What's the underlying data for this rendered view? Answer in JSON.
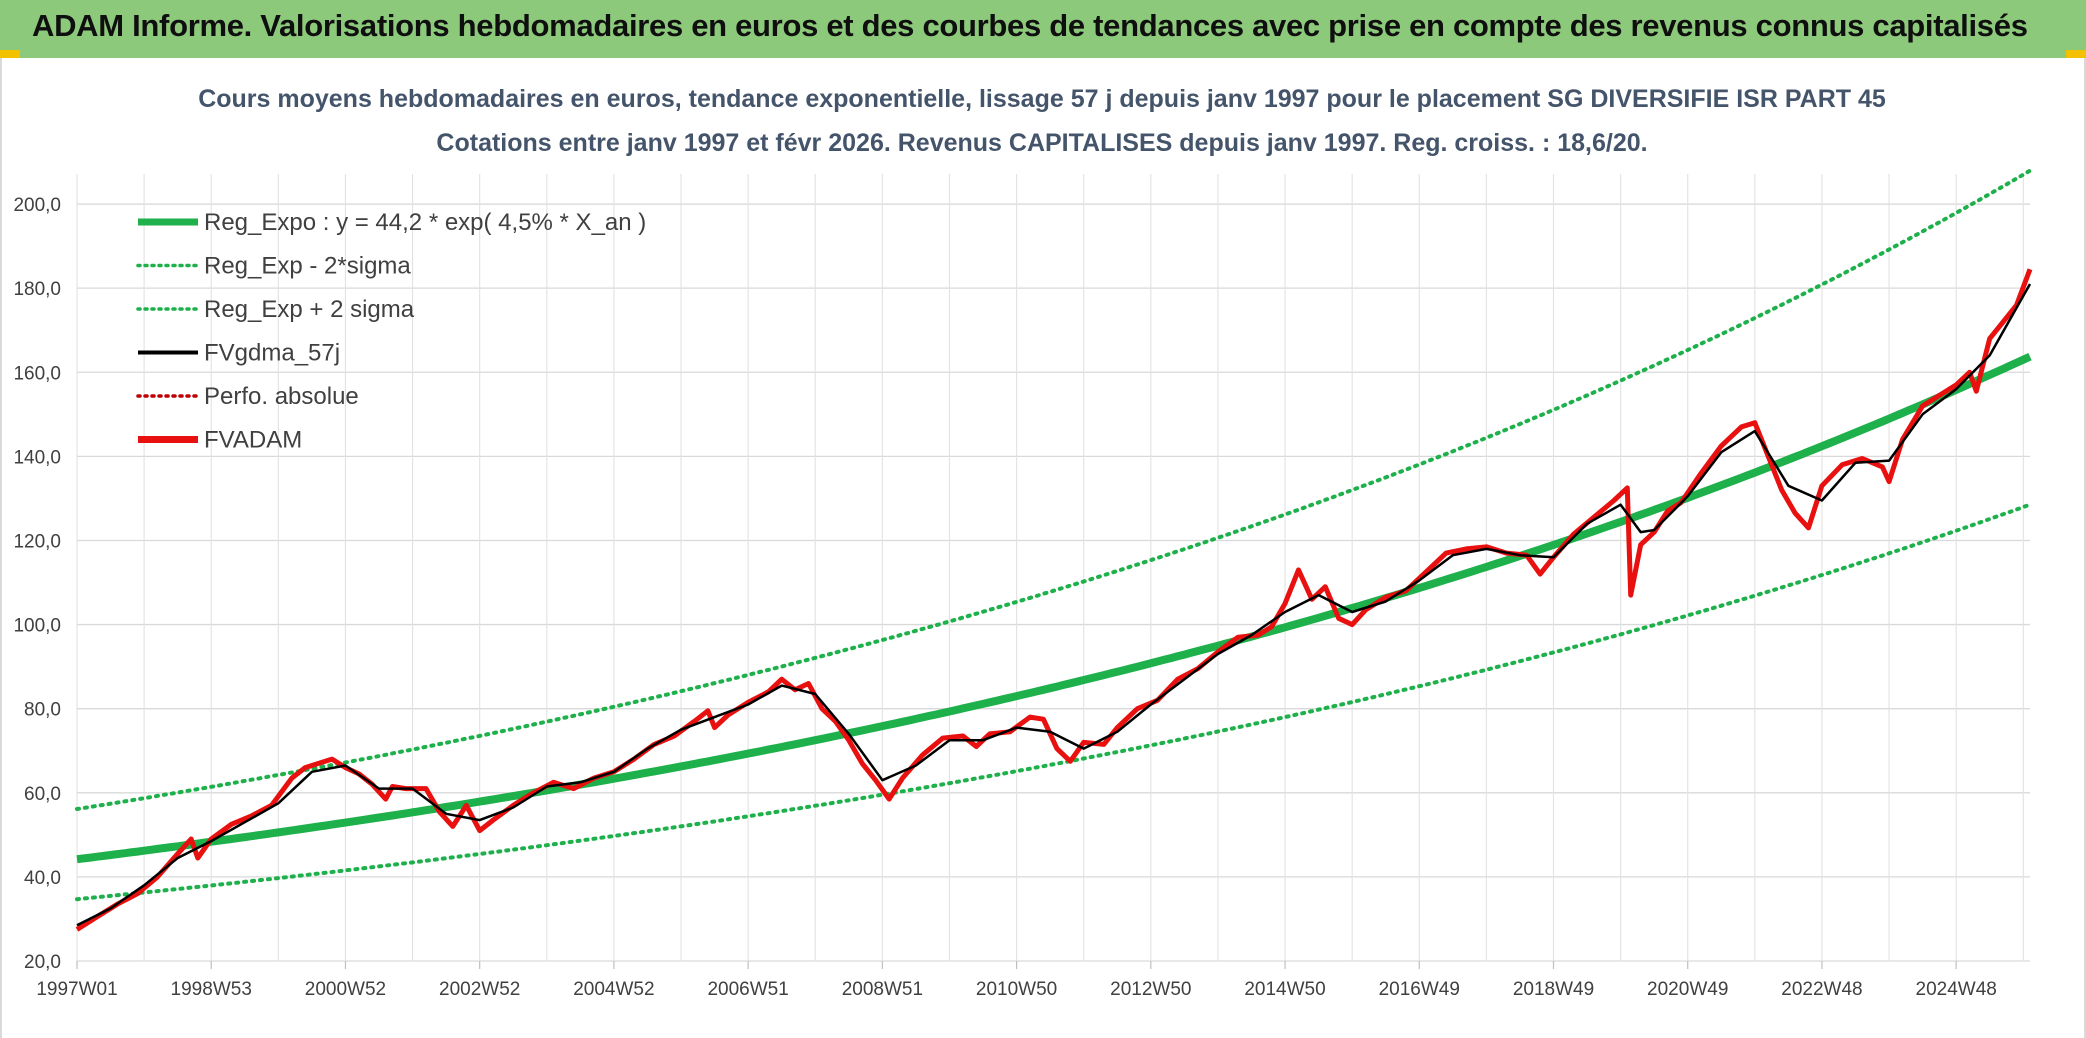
{
  "header": {
    "title": "ADAM Informe. Valorisations hebdomadaires en euros et des courbes de tendances avec prise en compte des revenus connus capitalisés",
    "background": "#8cc97a"
  },
  "chart_data": {
    "type": "line",
    "title": "Cours moyens hebdomadaires en euros, tendance exponentielle, lissage 57 j depuis janv 1997 pour le placement SG DIVERSIFIE ISR PART 45",
    "subtitle": "Cotations entre janv 1997 et févr 2026. Revenus CAPITALISES depuis janv 1997. Reg. croiss. : 18,6/20.",
    "ylim": [
      20,
      210
    ],
    "y_ticks": [
      "20,0",
      "40,0",
      "60,0",
      "80,0",
      "100,0",
      "120,0",
      "140,0",
      "160,0",
      "180,0",
      "200,0"
    ],
    "x_range_years": [
      1997.0,
      2026.1
    ],
    "x_tick_labels": [
      "1997W01",
      "1998W53",
      "2000W52",
      "2002W52",
      "2004W52",
      "2006W51",
      "2008W51",
      "2010W50",
      "2012W50",
      "2014W50",
      "2016W49",
      "2018W49",
      "2020W49",
      "2022W48",
      "2024W48"
    ],
    "x_tick_years": [
      1997.0,
      1999.0,
      2001.0,
      2003.0,
      2005.0,
      2007.0,
      2009.0,
      2011.0,
      2013.0,
      2015.0,
      2017.0,
      2019.0,
      2021.0,
      2023.0,
      2025.0
    ],
    "grid": true,
    "legend_position": "top-left",
    "legend": [
      {
        "key": "reg_expo",
        "label": "Reg_Expo : y = 44,2 * exp( 4,5% *  X_an )",
        "color": "#1db04b",
        "style": "solid-thick"
      },
      {
        "key": "reg_minus",
        "label": "Reg_Exp - 2*sigma",
        "color": "#1db04b",
        "style": "dotted"
      },
      {
        "key": "reg_plus",
        "label": "Reg_Exp + 2 sigma",
        "color": "#1db04b",
        "style": "dotted"
      },
      {
        "key": "fvgdma",
        "label": "FVgdma_57j",
        "color": "#000000",
        "style": "solid"
      },
      {
        "key": "perfo",
        "label": "Perfo. absolue",
        "color": "#c00000",
        "style": "dotted"
      },
      {
        "key": "fvadam",
        "label": "FVADAM",
        "color": "#e8110f",
        "style": "solid-thick"
      }
    ],
    "regression": {
      "a": 44.2,
      "rate": 0.045,
      "minus_factor": 0.785,
      "plus_factor": 1.27
    },
    "series": [
      {
        "name": "FVADAM",
        "points": [
          [
            1997.0,
            27.5
          ],
          [
            1997.3,
            30.5
          ],
          [
            1997.6,
            33.5
          ],
          [
            1997.9,
            36.0
          ],
          [
            1998.2,
            40.0
          ],
          [
            1998.5,
            45.5
          ],
          [
            1998.7,
            49.0
          ],
          [
            1998.8,
            44.5
          ],
          [
            1999.0,
            49.0
          ],
          [
            1999.3,
            52.5
          ],
          [
            1999.6,
            54.5
          ],
          [
            1999.9,
            57.0
          ],
          [
            2000.2,
            63.5
          ],
          [
            2000.4,
            66.0
          ],
          [
            2000.6,
            67.0
          ],
          [
            2000.8,
            68.0
          ],
          [
            2001.0,
            66.0
          ],
          [
            2001.2,
            64.5
          ],
          [
            2001.4,
            62.0
          ],
          [
            2001.6,
            58.5
          ],
          [
            2001.7,
            61.5
          ],
          [
            2001.9,
            61.0
          ],
          [
            2002.2,
            61.0
          ],
          [
            2002.4,
            55.5
          ],
          [
            2002.6,
            52.0
          ],
          [
            2002.8,
            57.0
          ],
          [
            2003.0,
            51.0
          ],
          [
            2003.2,
            53.5
          ],
          [
            2003.5,
            57.0
          ],
          [
            2003.8,
            60.0
          ],
          [
            2004.1,
            62.5
          ],
          [
            2004.4,
            61.0
          ],
          [
            2004.7,
            63.5
          ],
          [
            2005.0,
            65.0
          ],
          [
            2005.3,
            68.0
          ],
          [
            2005.6,
            71.5
          ],
          [
            2005.9,
            73.5
          ],
          [
            2006.2,
            77.0
          ],
          [
            2006.4,
            79.5
          ],
          [
            2006.5,
            75.5
          ],
          [
            2006.7,
            78.5
          ],
          [
            2007.0,
            81.5
          ],
          [
            2007.3,
            84.0
          ],
          [
            2007.5,
            87.0
          ],
          [
            2007.7,
            84.5
          ],
          [
            2007.9,
            86.0
          ],
          [
            2008.1,
            80.0
          ],
          [
            2008.3,
            77.0
          ],
          [
            2008.5,
            72.5
          ],
          [
            2008.7,
            67.0
          ],
          [
            2008.9,
            63.0
          ],
          [
            2009.1,
            58.5
          ],
          [
            2009.3,
            63.5
          ],
          [
            2009.6,
            69.0
          ],
          [
            2009.9,
            73.0
          ],
          [
            2010.2,
            73.5
          ],
          [
            2010.4,
            71.0
          ],
          [
            2010.6,
            74.0
          ],
          [
            2010.9,
            74.5
          ],
          [
            2011.2,
            78.0
          ],
          [
            2011.4,
            77.5
          ],
          [
            2011.6,
            70.5
          ],
          [
            2011.8,
            67.5
          ],
          [
            2012.0,
            72.0
          ],
          [
            2012.3,
            71.5
          ],
          [
            2012.5,
            75.5
          ],
          [
            2012.8,
            80.0
          ],
          [
            2013.1,
            82.0
          ],
          [
            2013.4,
            87.0
          ],
          [
            2013.7,
            89.5
          ],
          [
            2014.0,
            93.5
          ],
          [
            2014.3,
            97.0
          ],
          [
            2014.6,
            97.5
          ],
          [
            2014.8,
            99.5
          ],
          [
            2015.0,
            105.0
          ],
          [
            2015.2,
            113.0
          ],
          [
            2015.4,
            106.0
          ],
          [
            2015.6,
            109.0
          ],
          [
            2015.8,
            101.5
          ],
          [
            2016.0,
            100.0
          ],
          [
            2016.2,
            103.5
          ],
          [
            2016.5,
            106.5
          ],
          [
            2016.8,
            108.0
          ],
          [
            2017.1,
            112.5
          ],
          [
            2017.4,
            117.0
          ],
          [
            2017.7,
            118.0
          ],
          [
            2018.0,
            118.5
          ],
          [
            2018.3,
            117.0
          ],
          [
            2018.6,
            116.5
          ],
          [
            2018.8,
            112.0
          ],
          [
            2019.0,
            116.0
          ],
          [
            2019.3,
            121.5
          ],
          [
            2019.6,
            125.5
          ],
          [
            2019.9,
            129.5
          ],
          [
            2020.1,
            132.5
          ],
          [
            2020.15,
            107.0
          ],
          [
            2020.3,
            119.0
          ],
          [
            2020.5,
            122.0
          ],
          [
            2020.7,
            127.0
          ],
          [
            2020.9,
            129.0
          ],
          [
            2021.2,
            136.0
          ],
          [
            2021.5,
            142.5
          ],
          [
            2021.8,
            147.0
          ],
          [
            2022.0,
            148.0
          ],
          [
            2022.2,
            140.0
          ],
          [
            2022.4,
            132.0
          ],
          [
            2022.6,
            126.5
          ],
          [
            2022.8,
            123.0
          ],
          [
            2023.0,
            133.0
          ],
          [
            2023.3,
            138.0
          ],
          [
            2023.6,
            139.5
          ],
          [
            2023.9,
            137.5
          ],
          [
            2024.0,
            134.0
          ],
          [
            2024.2,
            144.0
          ],
          [
            2024.5,
            152.0
          ],
          [
            2024.8,
            155.0
          ],
          [
            2025.0,
            157.0
          ],
          [
            2025.2,
            160.0
          ],
          [
            2025.3,
            155.5
          ],
          [
            2025.5,
            168.0
          ],
          [
            2025.7,
            172.0
          ],
          [
            2025.9,
            176.0
          ],
          [
            2026.1,
            184.5
          ]
        ]
      },
      {
        "name": "FVgdma_57j",
        "points": [
          [
            1997.0,
            28.5
          ],
          [
            1997.5,
            32.5
          ],
          [
            1998.0,
            38.0
          ],
          [
            1998.5,
            44.5
          ],
          [
            1999.0,
            48.5
          ],
          [
            1999.5,
            53.0
          ],
          [
            2000.0,
            57.5
          ],
          [
            2000.5,
            65.0
          ],
          [
            2001.0,
            66.5
          ],
          [
            2001.5,
            61.0
          ],
          [
            2002.0,
            61.0
          ],
          [
            2002.5,
            55.0
          ],
          [
            2003.0,
            53.5
          ],
          [
            2003.5,
            56.5
          ],
          [
            2004.0,
            61.5
          ],
          [
            2004.5,
            62.5
          ],
          [
            2005.0,
            65.0
          ],
          [
            2005.5,
            70.5
          ],
          [
            2006.0,
            75.0
          ],
          [
            2006.5,
            78.0
          ],
          [
            2007.0,
            81.0
          ],
          [
            2007.5,
            85.5
          ],
          [
            2008.0,
            83.5
          ],
          [
            2008.5,
            74.0
          ],
          [
            2009.0,
            63.0
          ],
          [
            2009.5,
            66.5
          ],
          [
            2010.0,
            72.5
          ],
          [
            2010.5,
            72.5
          ],
          [
            2011.0,
            75.5
          ],
          [
            2011.5,
            74.5
          ],
          [
            2012.0,
            70.5
          ],
          [
            2012.5,
            74.5
          ],
          [
            2013.0,
            81.0
          ],
          [
            2013.5,
            87.0
          ],
          [
            2014.0,
            93.0
          ],
          [
            2014.5,
            97.5
          ],
          [
            2015.0,
            103.0
          ],
          [
            2015.5,
            107.0
          ],
          [
            2016.0,
            103.0
          ],
          [
            2016.5,
            105.5
          ],
          [
            2017.0,
            110.5
          ],
          [
            2017.5,
            116.5
          ],
          [
            2018.0,
            118.0
          ],
          [
            2018.5,
            116.5
          ],
          [
            2019.0,
            116.0
          ],
          [
            2019.5,
            124.0
          ],
          [
            2020.0,
            128.5
          ],
          [
            2020.3,
            122.0
          ],
          [
            2020.5,
            122.5
          ],
          [
            2021.0,
            130.5
          ],
          [
            2021.5,
            141.0
          ],
          [
            2022.0,
            146.0
          ],
          [
            2022.5,
            133.0
          ],
          [
            2023.0,
            129.5
          ],
          [
            2023.5,
            138.5
          ],
          [
            2024.0,
            139.0
          ],
          [
            2024.5,
            150.0
          ],
          [
            2025.0,
            156.0
          ],
          [
            2025.5,
            164.0
          ],
          [
            2026.1,
            181.0
          ]
        ]
      }
    ]
  }
}
